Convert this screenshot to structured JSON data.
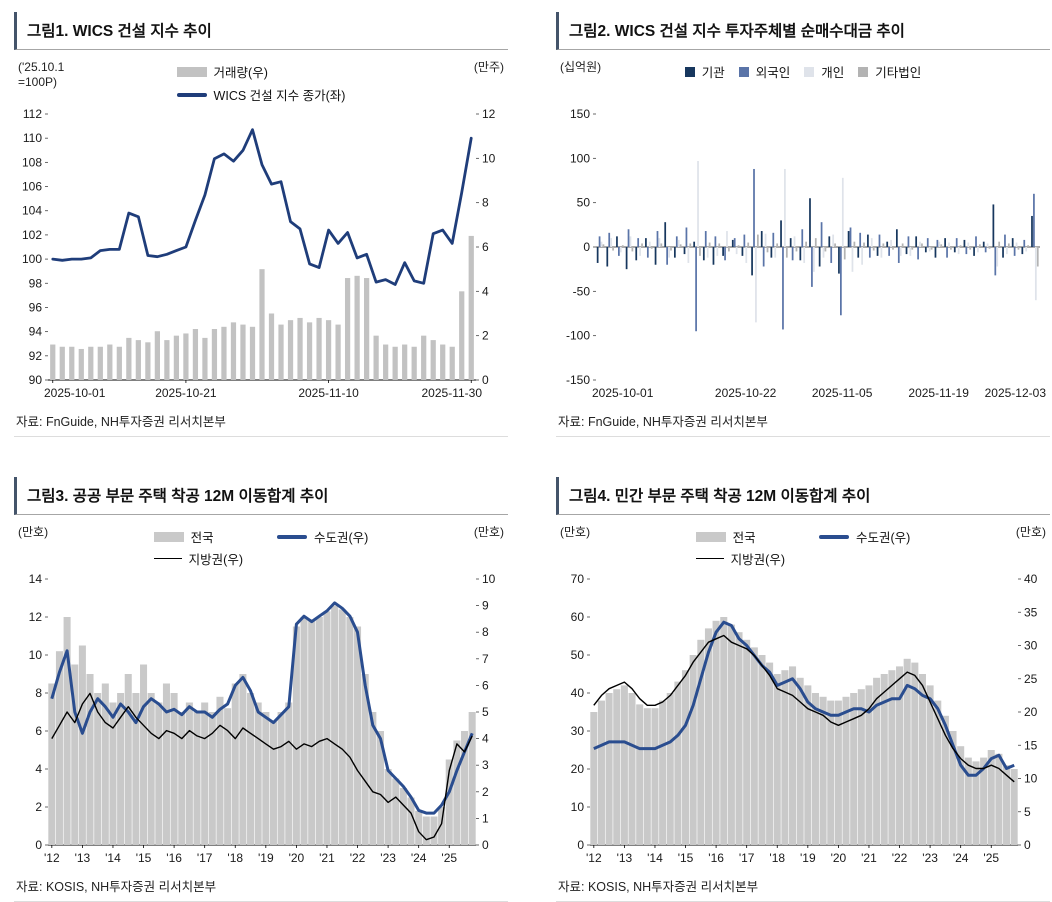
{
  "chart_data": [
    {
      "type": "bar+line",
      "title": "그림1. WICS 건설 지수 추이",
      "source": "자료: FnGuide, NH투자증권 리서치본부",
      "left_axis": {
        "unit": "('25.10.1\n=100P)",
        "min": 90,
        "max": 112,
        "step": 2
      },
      "right_axis": {
        "unit": "(만주)",
        "min": 0,
        "max": 12,
        "step": 2
      },
      "x_tick_labels": [
        "2025-10-01",
        "2025-10-21",
        "2025-11-10",
        "2025-11-30"
      ],
      "x_tick_indexes": [
        0,
        14,
        29,
        44
      ],
      "bars": {
        "name": "거래량(우)",
        "axis": "right",
        "color": "#c2c2c2",
        "values": [
          1.6,
          1.5,
          1.5,
          1.4,
          1.5,
          1.5,
          1.6,
          1.5,
          1.9,
          1.8,
          1.7,
          2.2,
          1.8,
          2,
          2.1,
          2.3,
          1.9,
          2.3,
          2.4,
          2.6,
          2.5,
          2.4,
          5,
          3,
          2.5,
          2.7,
          2.8,
          2.6,
          2.8,
          2.7,
          2.5,
          4.6,
          4.7,
          4.6,
          2,
          1.6,
          1.5,
          1.6,
          1.5,
          2,
          1.8,
          1.6,
          1.5,
          4,
          6.5
        ]
      },
      "line": {
        "name": "WICS 건설 지수 종가(좌)",
        "axis": "left",
        "color": "#1f3d7a",
        "values": [
          100,
          99.9,
          100,
          100,
          100.1,
          100.7,
          100.8,
          100.8,
          103.8,
          103.5,
          100.3,
          100.2,
          100.4,
          100.7,
          101,
          103.2,
          105.3,
          108.3,
          108.7,
          108.1,
          109,
          110.7,
          107.8,
          106.2,
          106.4,
          103.1,
          102.5,
          99.6,
          99.3,
          102.4,
          101.3,
          102.2,
          100.1,
          100.4,
          98.1,
          98.3,
          97.9,
          99.7,
          98.2,
          98,
          102.1,
          102.4,
          101.3,
          105.5,
          110
        ]
      }
    },
    {
      "type": "grouped-bar",
      "title": "그림2. WICS 건설 지수 투자주체별 순매수대금 추이",
      "source": "자료: FnGuide, NH투자증권 리서치본부",
      "left_axis": {
        "unit": "(십억원)",
        "min": -150,
        "max": 150,
        "step": 50
      },
      "x_tick_labels": [
        "2025-10-01",
        "2025-10-22",
        "2025-11-05",
        "2025-11-19",
        "2025-12-03"
      ],
      "x_tick_indexes": [
        0,
        15,
        25,
        35,
        45
      ],
      "series": [
        {
          "name": "기관",
          "color": "#17375e",
          "values": [
            -18,
            -22,
            12,
            -25,
            -15,
            10,
            -20,
            28,
            -12,
            -8,
            6,
            -15,
            -20,
            -10,
            8,
            -10,
            -32,
            18,
            -12,
            30,
            10,
            -15,
            55,
            -22,
            12,
            -30,
            18,
            -12,
            14,
            -10,
            6,
            20,
            -8,
            12,
            -6,
            -12,
            10,
            -6,
            8,
            -10,
            6,
            48,
            -12,
            10,
            -8,
            35
          ]
        },
        {
          "name": "외국인",
          "color": "#5a74a8",
          "values": [
            12,
            16,
            -10,
            20,
            10,
            -12,
            18,
            -20,
            12,
            22,
            -95,
            18,
            12,
            -15,
            10,
            14,
            88,
            -22,
            16,
            -93,
            -15,
            20,
            -45,
            28,
            -18,
            -77,
            22,
            16,
            -12,
            14,
            -10,
            -18,
            12,
            -14,
            10,
            8,
            -12,
            10,
            -8,
            12,
            -6,
            -32,
            14,
            -10,
            8,
            60
          ]
        },
        {
          "name": "개인",
          "color": "#dfe3ea",
          "values": [
            6,
            10,
            -6,
            12,
            -10,
            6,
            10,
            -12,
            8,
            -18,
            97,
            -12,
            -10,
            18,
            -8,
            -18,
            -85,
            15,
            -12,
            88,
            12,
            -18,
            -28,
            -12,
            14,
            78,
            -28,
            -20,
            10,
            -12,
            8,
            -10,
            -10,
            6,
            -5,
            6,
            5,
            -8,
            5,
            -6,
            4,
            -22,
            -8,
            5,
            -5,
            -60
          ]
        },
        {
          "name": "기타법인",
          "color": "#b3b3b3",
          "values": [
            3,
            -4,
            2,
            -5,
            4,
            -2,
            4,
            -4,
            3,
            4,
            -10,
            5,
            4,
            -5,
            2,
            5,
            14,
            -6,
            4,
            -12,
            -5,
            6,
            10,
            -5,
            4,
            -14,
            6,
            5,
            -4,
            4,
            -3,
            4,
            -3,
            4,
            -3,
            3,
            -3,
            2,
            -3,
            3,
            -2,
            6,
            4,
            -3,
            2,
            -22
          ]
        }
      ]
    },
    {
      "type": "area+lines",
      "title": "그림3. 공공 부문 주택 착공 12M 이동합계 추이",
      "source": "자료: KOSIS, NH투자증권 리서치본부",
      "left_axis": {
        "unit": "(만호)",
        "min": 0,
        "max": 14,
        "step": 2
      },
      "right_axis": {
        "unit": "(만호)",
        "min": 0,
        "max": 10,
        "step": 1
      },
      "x_tick_labels": [
        "'12",
        "'13",
        "'14",
        "'15",
        "'16",
        "'17",
        "'18",
        "'19",
        "'20",
        "'21",
        "'22",
        "'23",
        "'24",
        "'25"
      ],
      "x_tick_indexes": [
        0,
        4,
        8,
        12,
        16,
        20,
        24,
        28,
        32,
        36,
        40,
        44,
        48,
        52
      ],
      "area": {
        "name": "전국",
        "axis": "left",
        "color": "#c9c9c9",
        "values": [
          8.5,
          10.2,
          12,
          9.5,
          10.5,
          9,
          8,
          8.5,
          7.5,
          8,
          9,
          8,
          9.5,
          8,
          7.5,
          8.5,
          8,
          7,
          7.5,
          7,
          7.5,
          7,
          7.8,
          7.2,
          8.5,
          9,
          8,
          7.5,
          7,
          6.5,
          7,
          7.5,
          11.5,
          12,
          11.8,
          12,
          12.3,
          12.6,
          12.4,
          12,
          11.5,
          9,
          7,
          6,
          4,
          3.5,
          3,
          2.5,
          1.8,
          1.5,
          1.5,
          2,
          4.5,
          5.5,
          6,
          7
        ]
      },
      "lines": [
        {
          "name": "수도권(우)",
          "axis": "right",
          "color": "#2a4d8f",
          "width": 3,
          "values": [
            5.5,
            6.5,
            7.3,
            5,
            4.2,
            5,
            5.5,
            5.2,
            4.8,
            5.3,
            5,
            4.6,
            5.2,
            5.5,
            5.3,
            5,
            5.1,
            4.9,
            5.2,
            5,
            5,
            4.8,
            5.1,
            5.3,
            6,
            6.3,
            5.8,
            5,
            4.8,
            4.6,
            4.9,
            5.2,
            8.3,
            8.6,
            8.4,
            8.6,
            8.8,
            9.1,
            8.9,
            8.6,
            8,
            6,
            4.5,
            4,
            2.8,
            2.5,
            2.2,
            1.8,
            1.3,
            1.2,
            1.2,
            1.5,
            2,
            2.8,
            3.5,
            4.2
          ]
        },
        {
          "name": "지방권(우)",
          "axis": "right",
          "color": "#000000",
          "width": 1.4,
          "values": [
            4,
            4.5,
            5,
            4.6,
            5.3,
            5.7,
            5,
            4.6,
            4.4,
            4.8,
            5.2,
            4.8,
            4.5,
            4.2,
            4,
            4.3,
            4.2,
            4,
            4.3,
            4.1,
            4,
            4.2,
            4.5,
            4.3,
            4,
            4.4,
            4.2,
            4,
            3.8,
            3.6,
            3.7,
            3.9,
            3.6,
            3.8,
            3.7,
            3.9,
            4,
            3.8,
            3.6,
            3.3,
            2.8,
            2.4,
            2,
            1.9,
            1.6,
            1.8,
            1.5,
            1.2,
            0.5,
            0.2,
            0.3,
            0.8,
            2.8,
            3.8,
            3.5,
            4.1
          ]
        }
      ]
    },
    {
      "type": "area+lines",
      "title": "그림4. 민간 부문 주택 착공 12M 이동합계 추이",
      "source": "자료: KOSIS, NH투자증권 리서치본부",
      "left_axis": {
        "unit": "(만호)",
        "min": 0,
        "max": 70,
        "step": 10
      },
      "right_axis": {
        "unit": "(만호)",
        "min": 0,
        "max": 40,
        "step": 5
      },
      "x_tick_labels": [
        "'12",
        "'13",
        "'14",
        "'15",
        "'16",
        "'17",
        "'18",
        "'19",
        "'20",
        "'21",
        "'22",
        "'23",
        "'24",
        "'25"
      ],
      "x_tick_indexes": [
        0,
        4,
        8,
        12,
        16,
        20,
        24,
        28,
        32,
        36,
        40,
        44,
        48,
        52
      ],
      "area": {
        "name": "전국",
        "axis": "left",
        "color": "#c9c9c9",
        "values": [
          35,
          38,
          40,
          41,
          42,
          40,
          37,
          36,
          36,
          38,
          40,
          43,
          46,
          50,
          54,
          57,
          59,
          60,
          58,
          56,
          54,
          52,
          50,
          48,
          45,
          46,
          47,
          44,
          42,
          40,
          39,
          38,
          38,
          39,
          40,
          41,
          42,
          44,
          45,
          46,
          47,
          49,
          48,
          45,
          42,
          38,
          34,
          30,
          26,
          23,
          22,
          23,
          25,
          24,
          21,
          20
        ]
      },
      "lines": [
        {
          "name": "수도권(우)",
          "axis": "right",
          "color": "#2a4d8f",
          "width": 3,
          "values": [
            14.5,
            15,
            15.5,
            15.5,
            15.5,
            15,
            14.5,
            14.5,
            14.5,
            15,
            15.5,
            16.5,
            18,
            21,
            25,
            29,
            32,
            33.5,
            33,
            31,
            30,
            28.5,
            27,
            26,
            24,
            24.5,
            25,
            23.5,
            21.5,
            20.5,
            20,
            19.5,
            19.5,
            20,
            20.5,
            20.5,
            20,
            21,
            21.5,
            22,
            22,
            24,
            23.5,
            22.5,
            22,
            20.5,
            18,
            15,
            12,
            10.5,
            10.5,
            11.5,
            13,
            13.5,
            11.5,
            12
          ]
        },
        {
          "name": "지방권(우)",
          "axis": "right",
          "color": "#000000",
          "width": 1.4,
          "values": [
            21,
            22.5,
            23.5,
            24,
            24.5,
            23.5,
            22,
            21,
            21,
            21.5,
            22.5,
            24,
            25.5,
            27.5,
            29,
            30.5,
            31,
            31.5,
            30.5,
            30,
            29.5,
            28.5,
            27,
            25.5,
            23.5,
            23,
            22.5,
            21.5,
            20.5,
            20,
            19.5,
            18.5,
            18,
            18.5,
            19,
            19.5,
            20.5,
            22,
            23,
            24,
            25,
            26,
            25.5,
            24,
            21.5,
            19,
            16.5,
            14.5,
            13,
            12,
            11.5,
            11.5,
            12,
            11.5,
            10.5,
            9.5
          ]
        }
      ]
    }
  ]
}
